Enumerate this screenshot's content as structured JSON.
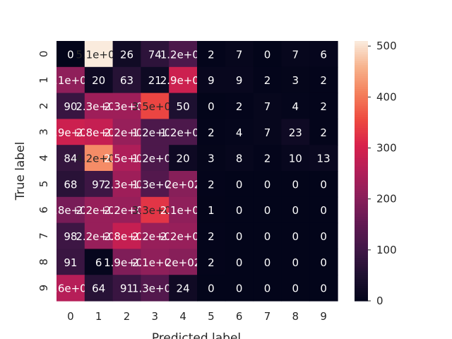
{
  "chart_data": {
    "type": "heatmap",
    "title": "",
    "xlabel": "Predicted label",
    "ylabel": "True label",
    "x_categories": [
      "0",
      "1",
      "2",
      "3",
      "4",
      "5",
      "6",
      "7",
      "8",
      "9"
    ],
    "y_categories": [
      "0",
      "1",
      "2",
      "3",
      "4",
      "5",
      "6",
      "7",
      "8",
      "9"
    ],
    "values": [
      [
        0,
        510,
        26,
        74,
        120,
        2,
        7,
        0,
        7,
        6
      ],
      [
        210,
        20,
        63,
        21,
        290,
        9,
        9,
        2,
        3,
        2
      ],
      [
        90,
        230,
        230,
        350,
        50,
        0,
        2,
        7,
        4,
        2
      ],
      [
        290,
        280,
        220,
        120,
        120,
        2,
        4,
        7,
        23,
        2
      ],
      [
        84,
        420,
        250,
        120,
        20,
        3,
        8,
        2,
        10,
        13
      ],
      [
        68,
        97,
        230,
        130,
        200,
        2,
        0,
        0,
        0,
        0
      ],
      [
        180,
        220,
        220,
        330,
        210,
        1,
        0,
        0,
        0,
        0
      ],
      [
        98,
        220,
        280,
        220,
        220,
        2,
        0,
        0,
        0,
        0
      ],
      [
        91,
        6,
        190,
        210,
        200,
        2,
        0,
        0,
        0,
        0
      ],
      [
        260,
        64,
        91,
        130,
        24,
        0,
        0,
        0,
        0,
        0
      ]
    ],
    "cell_labels": [
      [
        "0",
        "5.1e+02",
        "26",
        "74",
        "1.2e+02",
        "2",
        "7",
        "0",
        "7",
        "6"
      ],
      [
        "2.1e+02",
        "20",
        "63",
        "21",
        "2.9e+02",
        "9",
        "9",
        "2",
        "3",
        "2"
      ],
      [
        "90",
        "2.3e+02",
        "2.3e+02",
        "3.5e+02",
        "50",
        "0",
        "2",
        "7",
        "4",
        "2"
      ],
      [
        "2.9e+02",
        "2.8e+02",
        "2.2e+02",
        "1.2e+02",
        "1.2e+02",
        "2",
        "4",
        "7",
        "23",
        "2"
      ],
      [
        "84",
        "4.2e+02",
        "2.5e+02",
        "1.2e+02",
        "20",
        "3",
        "8",
        "2",
        "10",
        "13"
      ],
      [
        "68",
        "97",
        "2.3e+02",
        "1.3e+02",
        "2e+02",
        "2",
        "0",
        "0",
        "0",
        "0"
      ],
      [
        "1.8e+02",
        "2.2e+02",
        "2.2e+02",
        "3.3e+02",
        "2.1e+02",
        "1",
        "0",
        "0",
        "0",
        "0"
      ],
      [
        "98",
        "2.2e+02",
        "2.8e+02",
        "2.2e+02",
        "2.2e+02",
        "2",
        "0",
        "0",
        "0",
        "0"
      ],
      [
        "91",
        "6",
        "1.9e+02",
        "2.1e+02",
        "2e+02",
        "2",
        "0",
        "0",
        "0",
        "0"
      ],
      [
        "2.6e+02",
        "64",
        "91",
        "1.3e+02",
        "24",
        "0",
        "0",
        "0",
        "0",
        "0"
      ]
    ],
    "colorbar": {
      "colormap": "rocket",
      "vmin": 0,
      "vmax": 510,
      "ticks": [
        0,
        100,
        200,
        300,
        400,
        500
      ]
    }
  }
}
